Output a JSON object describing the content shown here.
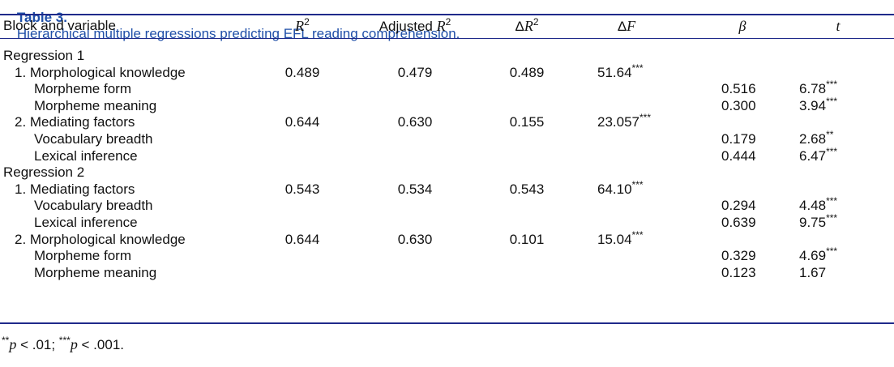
{
  "title": {
    "label": "Table 3.",
    "text": "Hierarchical multiple regressions predicting EFL reading comprehension."
  },
  "table": {
    "header": [
      {
        "text": "Block and variable"
      },
      {
        "italic": "R",
        "sup": "2"
      },
      {
        "text": "Adjusted ",
        "italic": "R",
        "sup": "2"
      },
      {
        "text": "Δ",
        "italic": "R",
        "sup": "2"
      },
      {
        "text": "Δ",
        "italic": "F"
      },
      {
        "italic": "β"
      },
      {
        "italic": "t"
      }
    ],
    "blocks": [
      {
        "name": "Regression 1",
        "steps": [
          {
            "name": "1. Morphological knowledge",
            "r2": "0.489",
            "adj_r2": "0.479",
            "delta_r2": "0.489",
            "delta_f": {
              "v": "51.64",
              "sig": "***"
            },
            "vars": [
              {
                "name": "Morpheme form",
                "beta": "0.516",
                "t": {
                  "v": "6.78",
                  "sig": "***"
                }
              },
              {
                "name": "Morpheme meaning",
                "beta": "0.300",
                "t": {
                  "v": "3.94",
                  "sig": "***"
                }
              }
            ]
          },
          {
            "name": "2. Mediating factors",
            "r2": "0.644",
            "adj_r2": "0.630",
            "delta_r2": "0.155",
            "delta_f": {
              "v": "23.057",
              "sig": "***"
            },
            "vars": [
              {
                "name": "Vocabulary breadth",
                "beta": "0.179",
                "t": {
                  "v": "2.68",
                  "sig": "**"
                }
              },
              {
                "name": "Lexical inference",
                "beta": "0.444",
                "t": {
                  "v": "6.47",
                  "sig": "***"
                }
              }
            ]
          }
        ]
      },
      {
        "name": "Regression 2",
        "steps": [
          {
            "name": "1. Mediating factors",
            "r2": "0.543",
            "adj_r2": "0.534",
            "delta_r2": "0.543",
            "delta_f": {
              "v": "64.10",
              "sig": "***"
            },
            "vars": [
              {
                "name": "Vocabulary breadth",
                "beta": "0.294",
                "t": {
                  "v": "4.48",
                  "sig": "***"
                }
              },
              {
                "name": "Lexical inference",
                "beta": "0.639",
                "t": {
                  "v": "9.75",
                  "sig": "***"
                }
              }
            ]
          },
          {
            "name": "2. Morphological knowledge",
            "r2": "0.644",
            "adj_r2": "0.630",
            "delta_r2": "0.101",
            "delta_f": {
              "v": "15.04",
              "sig": "***"
            },
            "vars": [
              {
                "name": "Morpheme form",
                "beta": "0.329",
                "t": {
                  "v": "4.69",
                  "sig": "***"
                }
              },
              {
                "name": "Morpheme meaning",
                "beta": "0.123",
                "t": {
                  "v": "1.67"
                }
              }
            ]
          }
        ]
      }
    ]
  },
  "footnote": [
    {
      "stars": "**",
      "var": "p",
      "text": " < .01; "
    },
    {
      "stars": "***",
      "var": "p",
      "text": " < .001."
    }
  ]
}
